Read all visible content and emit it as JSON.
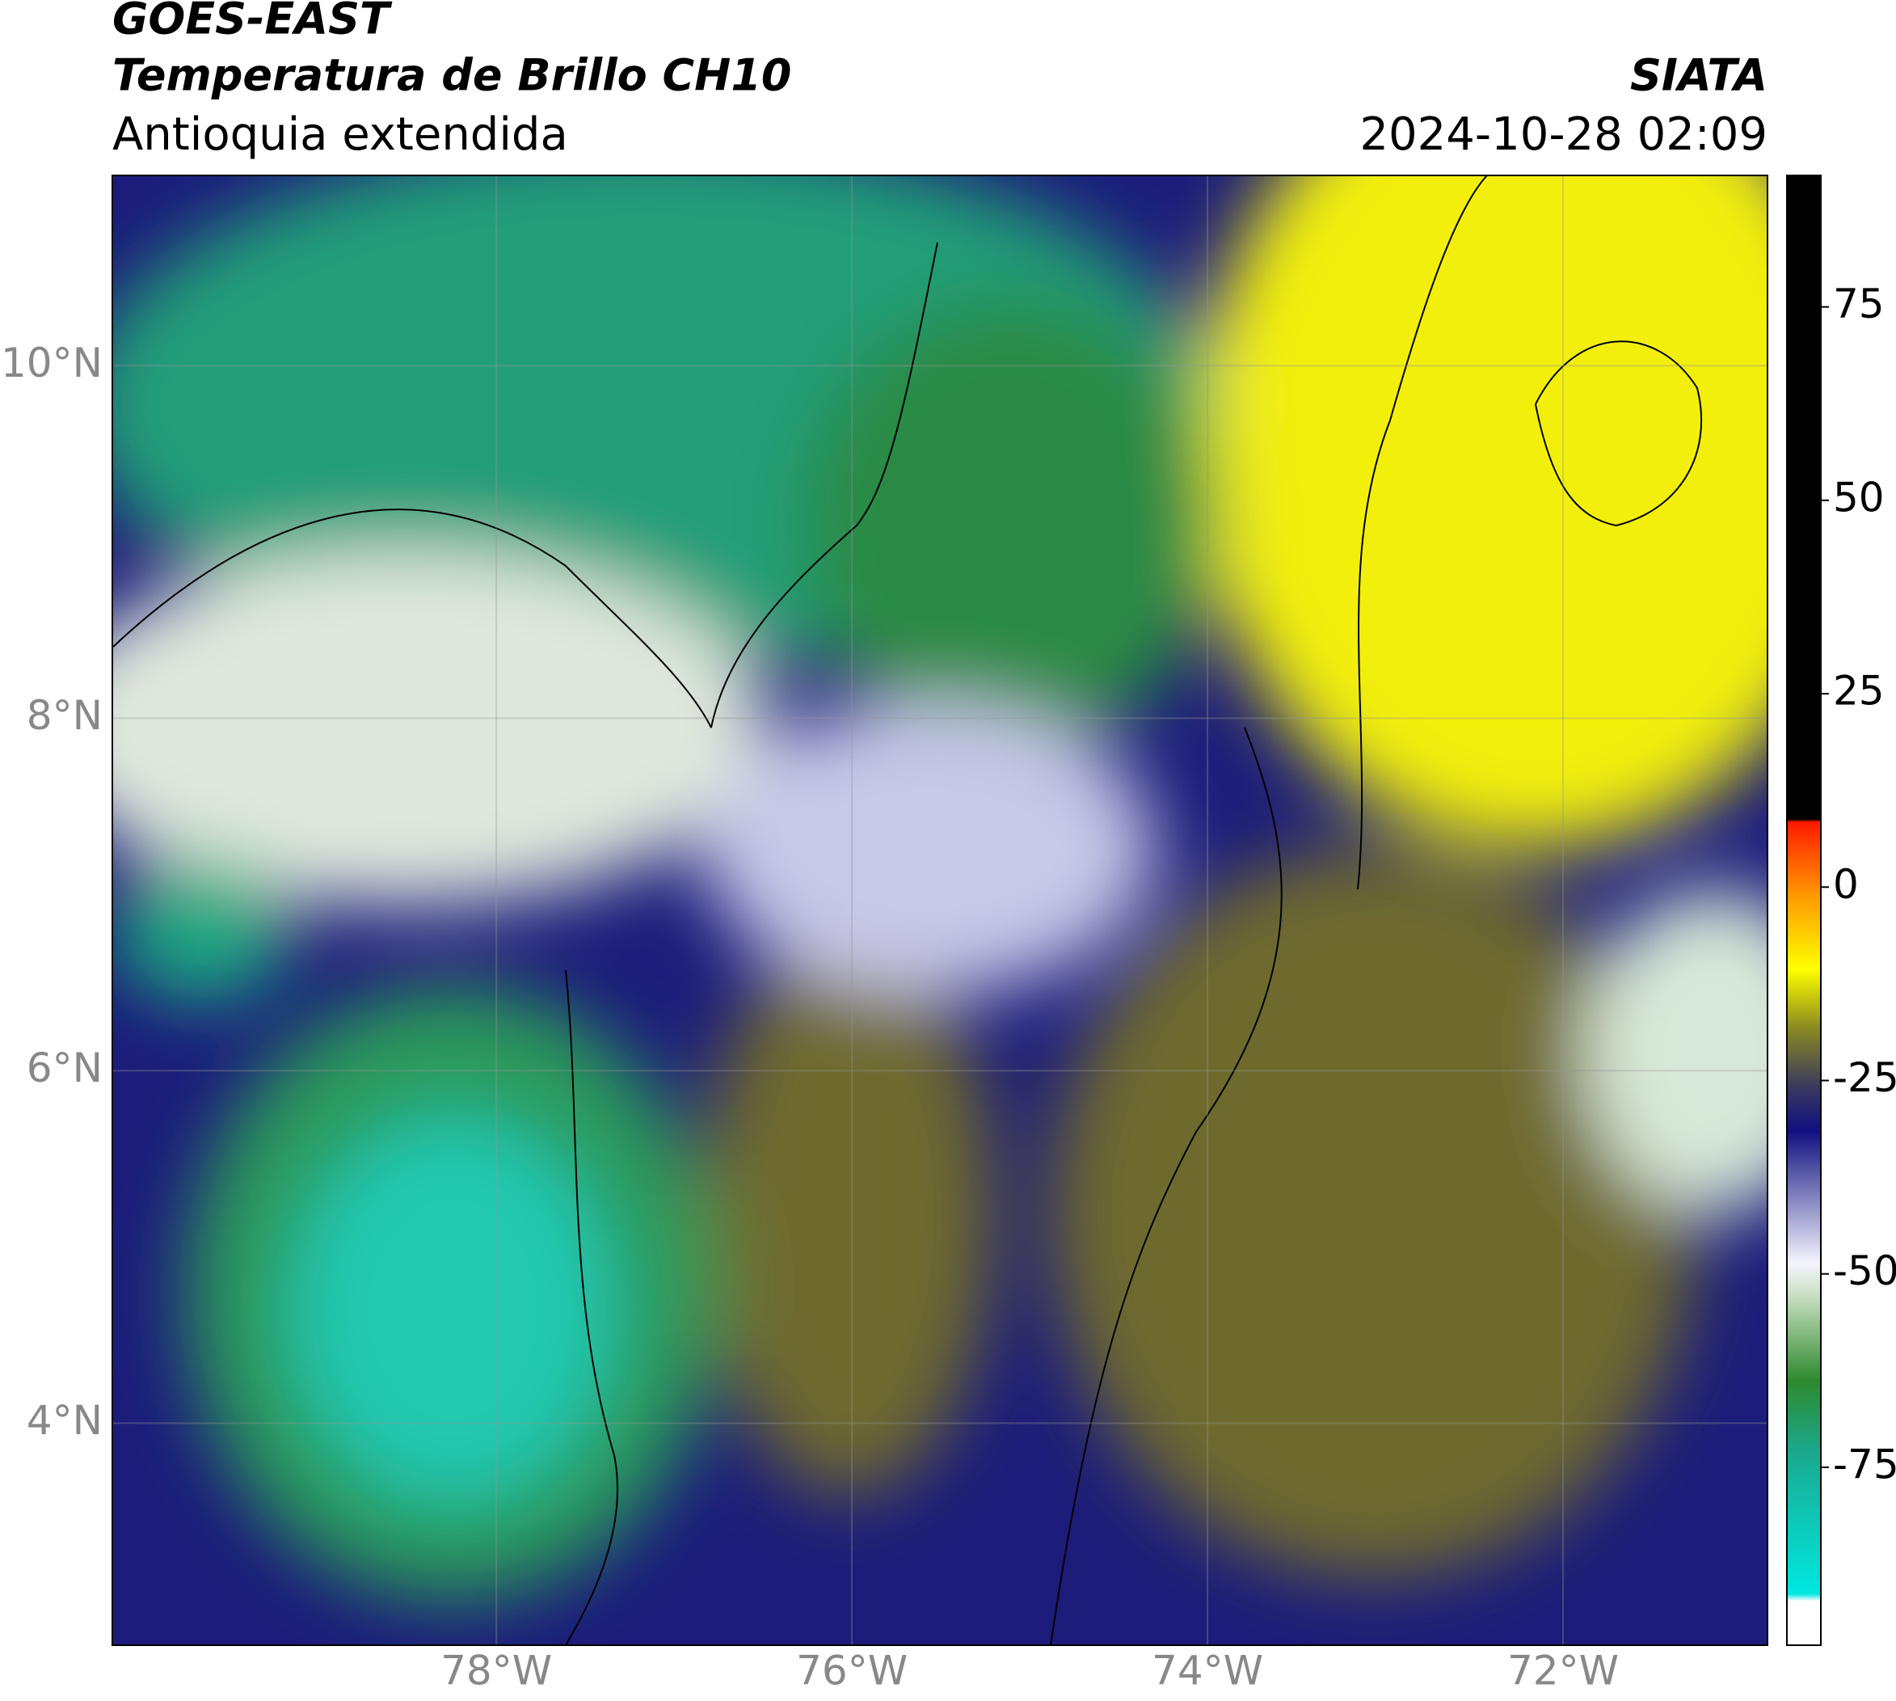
{
  "header": {
    "title": "GOES-EAST",
    "subtitle": "Temperatura de Brillo CH10",
    "region": "Antioquia extendida",
    "source": "SIATA",
    "datetime": "2024-10-28 02:09"
  },
  "map": {
    "xlim": [
      -80.16,
      -70.85
    ],
    "ylim": [
      2.74,
      11.08
    ],
    "xticks": [
      {
        "value": -78,
        "label": "78°W"
      },
      {
        "value": -76,
        "label": "76°W"
      },
      {
        "value": -74,
        "label": "74°W"
      },
      {
        "value": -72,
        "label": "72°W"
      }
    ],
    "yticks": [
      {
        "value": 10,
        "label": "10°N"
      },
      {
        "value": 8,
        "label": "8°N"
      },
      {
        "value": 6,
        "label": "6°N"
      },
      {
        "value": 4,
        "label": "4°N"
      }
    ],
    "grid": true
  },
  "colorbar": {
    "lim": [
      -98,
      92
    ],
    "ticks": [
      75,
      50,
      25,
      0,
      -25,
      -50,
      -75
    ]
  }
}
